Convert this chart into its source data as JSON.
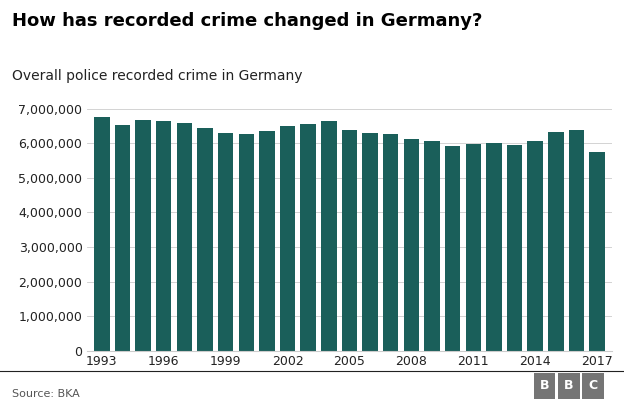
{
  "title": "How has recorded crime changed in Germany?",
  "subtitle": "Overall police recorded crime in Germany",
  "source": "Source: BKA",
  "years": [
    1993,
    1994,
    1995,
    1996,
    1997,
    1998,
    1999,
    2000,
    2001,
    2002,
    2003,
    2004,
    2005,
    2006,
    2007,
    2008,
    2009,
    2010,
    2011,
    2012,
    2013,
    2014,
    2015,
    2016,
    2017
  ],
  "values": [
    6750000,
    6536700,
    6668700,
    6647598,
    6586165,
    6456996,
    6302316,
    6264723,
    6363865,
    6507394,
    6572135,
    6633156,
    6391715,
    6304223,
    6284661,
    6114128,
    6054330,
    5933278,
    5990679,
    5997040,
    5961662,
    6082064,
    6330649,
    6372526,
    5762507
  ],
  "bar_color": "#1a5f5a",
  "ylim": [
    0,
    7000000
  ],
  "yticks": [
    0,
    1000000,
    2000000,
    3000000,
    4000000,
    5000000,
    6000000,
    7000000
  ],
  "xticks": [
    1993,
    1996,
    1999,
    2002,
    2005,
    2008,
    2011,
    2014,
    2017
  ],
  "background_color": "#ffffff",
  "title_fontsize": 13,
  "subtitle_fontsize": 10,
  "tick_fontsize": 9,
  "source_fontsize": 8,
  "bbc_color": "#757575"
}
